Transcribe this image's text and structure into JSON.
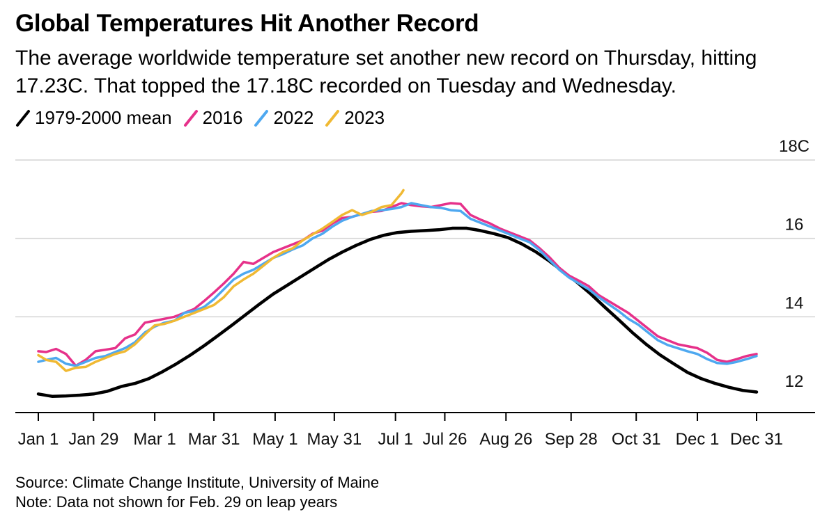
{
  "header": {
    "title": "Global Temperatures Hit Another Record",
    "subtitle": "The average worldwide temperature set another new record on Thursday, hitting 17.23C. That topped the 17.18C recorded on Tuesday and Wednesday."
  },
  "legend": [
    {
      "label": "1979-2000 mean",
      "color": "#000000"
    },
    {
      "label": "2016",
      "color": "#e6318a"
    },
    {
      "label": "2022",
      "color": "#4ea8f0"
    },
    {
      "label": "2023",
      "color": "#f0b933"
    }
  ],
  "footer": {
    "source": "Source: Climate Change Institute, University of Maine",
    "note": "Note: Data not shown for Feb. 29 on leap years"
  },
  "chart_data": {
    "type": "line",
    "title": "Global Temperatures Hit Another Record",
    "xlabel": "",
    "ylabel": "",
    "x_unit": "day of year",
    "xlim": [
      1,
      365
    ],
    "ylim": [
      11.6,
      18
    ],
    "y_ticks": [
      {
        "value": 12,
        "label": "12"
      },
      {
        "value": 14,
        "label": "14"
      },
      {
        "value": 16,
        "label": "16"
      },
      {
        "value": 18,
        "label": "18C"
      }
    ],
    "x_ticks": [
      {
        "day": 1,
        "label": "Jan 1"
      },
      {
        "day": 29,
        "label": "Jan 29"
      },
      {
        "day": 60,
        "label": "Mar 1"
      },
      {
        "day": 90,
        "label": "Mar 31"
      },
      {
        "day": 121,
        "label": "May 1"
      },
      {
        "day": 151,
        "label": "May 31"
      },
      {
        "day": 182,
        "label": "Jul 1"
      },
      {
        "day": 207,
        "label": "Jul 26"
      },
      {
        "day": 238,
        "label": "Aug 26"
      },
      {
        "day": 271,
        "label": "Sep 28"
      },
      {
        "day": 304,
        "label": "Oct 31"
      },
      {
        "day": 335,
        "label": "Dec 1"
      },
      {
        "day": 365,
        "label": "Dec 31"
      }
    ],
    "grid": "horizontal",
    "series": [
      {
        "name": "1979-2000 mean",
        "color": "#000000",
        "x": [
          1,
          8,
          15,
          22,
          29,
          36,
          43,
          50,
          57,
          64,
          71,
          78,
          85,
          92,
          99,
          106,
          113,
          120,
          127,
          134,
          141,
          148,
          155,
          162,
          169,
          176,
          183,
          190,
          197,
          204,
          211,
          218,
          225,
          232,
          239,
          246,
          253,
          260,
          267,
          274,
          281,
          288,
          295,
          302,
          309,
          316,
          323,
          330,
          337,
          344,
          351,
          358,
          365
        ],
        "values": [
          12.03,
          11.97,
          11.98,
          12.0,
          12.03,
          12.1,
          12.22,
          12.3,
          12.42,
          12.6,
          12.8,
          13.02,
          13.26,
          13.52,
          13.78,
          14.05,
          14.32,
          14.58,
          14.8,
          15.02,
          15.24,
          15.46,
          15.65,
          15.82,
          15.97,
          16.08,
          16.15,
          16.18,
          16.2,
          16.22,
          16.26,
          16.26,
          16.2,
          16.12,
          16.02,
          15.86,
          15.66,
          15.42,
          15.15,
          14.88,
          14.58,
          14.25,
          13.93,
          13.6,
          13.3,
          13.03,
          12.8,
          12.58,
          12.42,
          12.3,
          12.2,
          12.12,
          12.08
        ]
      },
      {
        "name": "2016",
        "color": "#e6318a",
        "x": [
          1,
          5,
          10,
          15,
          20,
          25,
          30,
          35,
          40,
          45,
          50,
          55,
          60,
          65,
          70,
          75,
          80,
          85,
          90,
          95,
          100,
          105,
          110,
          115,
          120,
          125,
          130,
          135,
          140,
          145,
          150,
          155,
          160,
          165,
          170,
          175,
          180,
          185,
          190,
          195,
          200,
          205,
          210,
          215,
          220,
          225,
          230,
          235,
          240,
          245,
          250,
          255,
          260,
          265,
          270,
          275,
          280,
          285,
          290,
          295,
          300,
          305,
          310,
          315,
          320,
          325,
          330,
          335,
          340,
          345,
          350,
          355,
          360,
          365
        ],
        "values": [
          13.12,
          13.1,
          13.18,
          13.05,
          12.75,
          12.9,
          13.12,
          13.16,
          13.2,
          13.45,
          13.55,
          13.85,
          13.9,
          13.95,
          14.0,
          14.1,
          14.2,
          14.4,
          14.62,
          14.85,
          15.1,
          15.4,
          15.35,
          15.5,
          15.65,
          15.75,
          15.85,
          15.95,
          16.12,
          16.2,
          16.38,
          16.52,
          16.55,
          16.62,
          16.68,
          16.7,
          16.8,
          16.9,
          16.85,
          16.82,
          16.8,
          16.85,
          16.9,
          16.88,
          16.6,
          16.48,
          16.38,
          16.25,
          16.15,
          16.05,
          15.95,
          15.75,
          15.52,
          15.25,
          15.05,
          14.92,
          14.78,
          14.55,
          14.4,
          14.25,
          14.1,
          13.9,
          13.7,
          13.5,
          13.4,
          13.3,
          13.25,
          13.2,
          13.08,
          12.9,
          12.85,
          12.92,
          13.0,
          13.05
        ]
      },
      {
        "name": "2022",
        "color": "#4ea8f0",
        "x": [
          1,
          5,
          10,
          15,
          20,
          25,
          30,
          35,
          40,
          45,
          50,
          55,
          60,
          65,
          70,
          75,
          80,
          85,
          90,
          95,
          100,
          105,
          110,
          115,
          120,
          125,
          130,
          135,
          140,
          145,
          150,
          155,
          160,
          165,
          170,
          175,
          180,
          185,
          190,
          195,
          200,
          205,
          210,
          215,
          220,
          225,
          230,
          235,
          240,
          245,
          250,
          255,
          260,
          265,
          270,
          275,
          280,
          285,
          290,
          295,
          300,
          305,
          310,
          315,
          320,
          325,
          330,
          335,
          340,
          345,
          350,
          355,
          360,
          365
        ],
        "values": [
          12.85,
          12.9,
          12.95,
          12.8,
          12.75,
          12.85,
          12.95,
          13.0,
          13.1,
          13.2,
          13.35,
          13.6,
          13.75,
          13.85,
          13.9,
          14.1,
          14.15,
          14.25,
          14.45,
          14.7,
          14.95,
          15.1,
          15.2,
          15.35,
          15.5,
          15.6,
          15.72,
          15.82,
          16.0,
          16.12,
          16.3,
          16.45,
          16.55,
          16.62,
          16.7,
          16.72,
          16.75,
          16.8,
          16.9,
          16.85,
          16.8,
          16.78,
          16.72,
          16.7,
          16.5,
          16.4,
          16.3,
          16.2,
          16.1,
          16.0,
          15.9,
          15.7,
          15.45,
          15.2,
          15.0,
          14.85,
          14.7,
          14.5,
          14.32,
          14.15,
          13.95,
          13.8,
          13.6,
          13.4,
          13.28,
          13.2,
          13.12,
          13.05,
          12.92,
          12.82,
          12.8,
          12.85,
          12.92,
          13.0
        ]
      },
      {
        "name": "2023",
        "color": "#f0b933",
        "x": [
          1,
          5,
          10,
          15,
          20,
          25,
          30,
          35,
          40,
          45,
          50,
          55,
          60,
          65,
          70,
          75,
          80,
          85,
          90,
          95,
          100,
          105,
          110,
          115,
          120,
          125,
          130,
          135,
          140,
          145,
          150,
          155,
          160,
          165,
          170,
          175,
          180,
          185,
          186
        ],
        "values": [
          13.02,
          12.9,
          12.85,
          12.62,
          12.7,
          12.72,
          12.85,
          12.95,
          13.05,
          13.12,
          13.3,
          13.55,
          13.78,
          13.82,
          13.9,
          14.0,
          14.1,
          14.2,
          14.3,
          14.5,
          14.78,
          14.95,
          15.1,
          15.3,
          15.5,
          15.65,
          15.75,
          15.95,
          16.1,
          16.25,
          16.42,
          16.6,
          16.72,
          16.6,
          16.68,
          16.8,
          16.85,
          17.15,
          17.23
        ]
      }
    ]
  }
}
